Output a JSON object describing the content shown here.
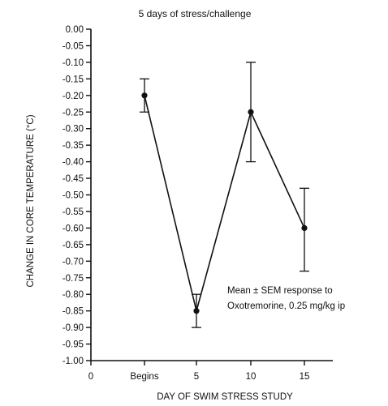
{
  "chart_data": {
    "type": "line",
    "title": "5 days of stress/challenge",
    "xlabel": "DAY OF SWIM STRESS STUDY",
    "ylabel": "CHANGE IN CORE TEMPERATURE (°C)",
    "x_ticks": [
      "0",
      "Begins",
      "5",
      "10",
      "15"
    ],
    "y_ticks": [
      "0.00",
      "-0.05",
      "-0.10",
      "-0.15",
      "-0.20",
      "-0.25",
      "-0.30",
      "-0.35",
      "-0.40",
      "-0.45",
      "-0.50",
      "-0.55",
      "-0.60",
      "-0.65",
      "-0.70",
      "-0.75",
      "-0.80",
      "-0.85",
      "-0.90",
      "-0.95",
      "-1.00"
    ],
    "ylim": [
      -1.0,
      0.0
    ],
    "grid": false,
    "annotation": [
      "Mean ± SEM response to",
      "Oxotremorine, 0.25 mg/kg ip"
    ],
    "series": [
      {
        "points": [
          {
            "x": "Begins",
            "y": -0.2,
            "err_upper": -0.15,
            "err_lower": -0.25
          },
          {
            "x": "5",
            "y": -0.85,
            "err_upper": -0.8,
            "err_lower": -0.9
          },
          {
            "x": "10",
            "y": -0.25,
            "err_upper": -0.1,
            "err_lower": -0.4
          },
          {
            "x": "15",
            "y": -0.6,
            "err_upper": -0.48,
            "err_lower": -0.73
          }
        ]
      }
    ]
  }
}
